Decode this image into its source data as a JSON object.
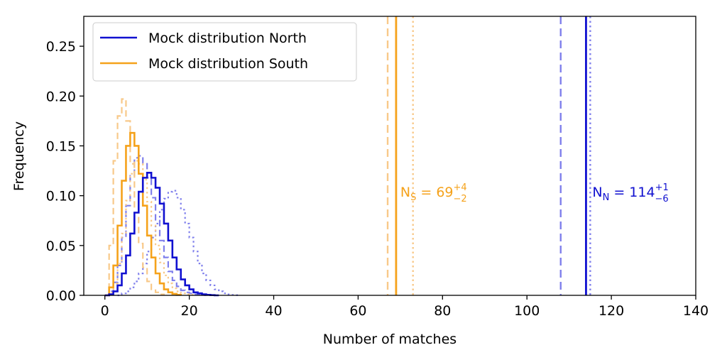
{
  "chart_data": {
    "type": "line",
    "xlabel": "Number of matches",
    "ylabel": "Frequency",
    "xlim": [
      -5,
      140
    ],
    "ylim": [
      0,
      0.28
    ],
    "x_ticks": [
      0,
      20,
      40,
      60,
      80,
      100,
      120,
      140
    ],
    "y_ticks": [
      0.0,
      0.05,
      0.1,
      0.15,
      0.2,
      0.25
    ],
    "x_tick_labels": [
      "0",
      "20",
      "40",
      "60",
      "80",
      "100",
      "120",
      "140"
    ],
    "y_tick_labels": [
      "0.00",
      "0.05",
      "0.10",
      "0.15",
      "0.20",
      "0.25"
    ],
    "grid": false,
    "legend_position": "top-left",
    "legend": [
      {
        "label": "Mock distribution North",
        "color": "#1010d0"
      },
      {
        "label": "Mock distribution South",
        "color": "#f5a21b"
      }
    ],
    "series": [
      {
        "group": "north",
        "style": "solid",
        "color": "#1010d0",
        "x": [
          0,
          1,
          2,
          3,
          4,
          5,
          6,
          7,
          8,
          9,
          10,
          11,
          12,
          13,
          14,
          15,
          16,
          17,
          18,
          19,
          20,
          21,
          22,
          23,
          24,
          25,
          26,
          27
        ],
        "y": [
          0,
          0.001,
          0.004,
          0.01,
          0.022,
          0.04,
          0.062,
          0.083,
          0.104,
          0.118,
          0.123,
          0.118,
          0.108,
          0.092,
          0.072,
          0.055,
          0.038,
          0.026,
          0.016,
          0.01,
          0.006,
          0.003,
          0.002,
          0.001,
          0.0005,
          0.0002,
          0,
          0
        ]
      },
      {
        "group": "north",
        "style": "dashed",
        "color": "#8080ec",
        "x": [
          0,
          1,
          2,
          3,
          4,
          5,
          6,
          7,
          8,
          9,
          10,
          11,
          12,
          13,
          14,
          15,
          16,
          17,
          18,
          19,
          20,
          21,
          22,
          23,
          24
        ],
        "y": [
          0,
          0.004,
          0.013,
          0.03,
          0.058,
          0.09,
          0.12,
          0.138,
          0.14,
          0.132,
          0.118,
          0.098,
          0.075,
          0.055,
          0.038,
          0.024,
          0.015,
          0.009,
          0.005,
          0.003,
          0.002,
          0.001,
          0.0005,
          0.0002,
          0
        ]
      },
      {
        "group": "north",
        "style": "dotted",
        "color": "#8080ec",
        "x": [
          3,
          4,
          5,
          6,
          7,
          8,
          9,
          10,
          11,
          12,
          13,
          14,
          15,
          16,
          17,
          18,
          19,
          20,
          21,
          22,
          23,
          24,
          25,
          26,
          27,
          28,
          29,
          30,
          31,
          32
        ],
        "y": [
          0,
          0.002,
          0.004,
          0.008,
          0.014,
          0.022,
          0.032,
          0.044,
          0.058,
          0.072,
          0.086,
          0.097,
          0.104,
          0.105,
          0.098,
          0.086,
          0.072,
          0.058,
          0.044,
          0.032,
          0.022,
          0.015,
          0.01,
          0.006,
          0.004,
          0.002,
          0.001,
          0.0005,
          0.0002,
          0
        ]
      },
      {
        "group": "south",
        "style": "solid",
        "color": "#f5a21b",
        "x": [
          0,
          1,
          2,
          3,
          4,
          5,
          6,
          7,
          8,
          9,
          10,
          11,
          12,
          13,
          14,
          15,
          16,
          17,
          18
        ],
        "y": [
          0,
          0.008,
          0.03,
          0.07,
          0.115,
          0.15,
          0.163,
          0.15,
          0.122,
          0.09,
          0.06,
          0.038,
          0.022,
          0.012,
          0.006,
          0.003,
          0.0015,
          0.0005,
          0
        ]
      },
      {
        "group": "south",
        "style": "dashed",
        "color": "#f8c98a",
        "x": [
          0,
          1,
          2,
          3,
          4,
          5,
          6,
          7,
          8,
          9,
          10,
          11,
          12,
          13,
          14
        ],
        "y": [
          0,
          0.05,
          0.135,
          0.18,
          0.197,
          0.175,
          0.132,
          0.088,
          0.052,
          0.028,
          0.014,
          0.006,
          0.003,
          0.001,
          0
        ]
      },
      {
        "group": "south",
        "style": "dotted",
        "color": "#f8c98a",
        "x": [
          0,
          1,
          2,
          3,
          4,
          5,
          6,
          7,
          8,
          9,
          10,
          11,
          12,
          13,
          14,
          15,
          16,
          17,
          18,
          19,
          20,
          21
        ],
        "y": [
          0,
          0.003,
          0.012,
          0.032,
          0.062,
          0.095,
          0.122,
          0.135,
          0.132,
          0.116,
          0.094,
          0.07,
          0.05,
          0.033,
          0.02,
          0.012,
          0.007,
          0.004,
          0.002,
          0.001,
          0.0005,
          0
        ]
      }
    ],
    "vlines": [
      {
        "x": 114,
        "color": "#1010d0",
        "style": "solid"
      },
      {
        "x": 108,
        "color": "#8080ec",
        "style": "dashed"
      },
      {
        "x": 115,
        "color": "#8080ec",
        "style": "dotted"
      },
      {
        "x": 69,
        "color": "#f5a21b",
        "style": "solid"
      },
      {
        "x": 67,
        "color": "#f8c98a",
        "style": "dashed"
      },
      {
        "x": 73,
        "color": "#f8c98a",
        "style": "dotted"
      }
    ],
    "annotations": [
      {
        "id": "south",
        "x": 70,
        "y": 0.104,
        "color": "#f5a21b",
        "base": "N",
        "sub": "S",
        "eq": " = 69",
        "sup_err": "+4",
        "sub_err": "−2"
      },
      {
        "id": "north",
        "x": 115.5,
        "y": 0.104,
        "color": "#1010d0",
        "base": "N",
        "sub": "N",
        "eq": " = 114",
        "sup_err": "+1",
        "sub_err": "−6"
      }
    ]
  }
}
